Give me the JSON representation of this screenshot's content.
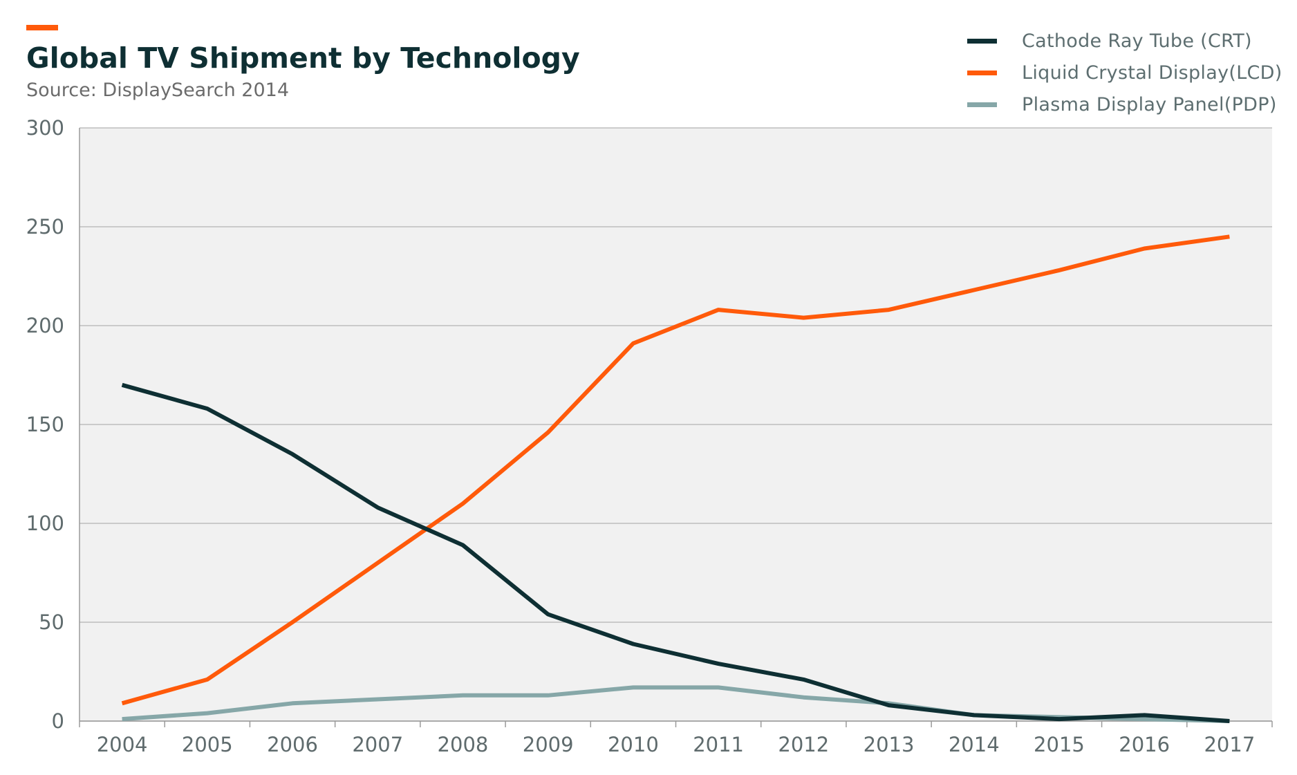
{
  "header": {
    "title": "Global TV Shipment by Technology",
    "subtitle": "Source: DisplaySearch 2014",
    "accent_color": "#ff5a0a"
  },
  "legend": {
    "placement": "top-right",
    "items": [
      {
        "label": "Cathode Ray Tube (CRT)",
        "color": "#0e2f33"
      },
      {
        "label": "Liquid Crystal Display(LCD)",
        "color": "#ff5a0a"
      },
      {
        "label": "Plasma Display Panel(PDP)",
        "color": "#86a7a8"
      }
    ]
  },
  "chart_data": {
    "type": "line",
    "x": [
      "2004",
      "2005",
      "2006",
      "2007",
      "2008",
      "2009",
      "2010",
      "2011",
      "2012",
      "2013",
      "2014",
      "2015",
      "2016",
      "2017"
    ],
    "yticks": [
      "0",
      "50",
      "100",
      "150",
      "200",
      "250",
      "300"
    ],
    "ylim": [
      0,
      300
    ],
    "grid": true,
    "plot_background": "#f1f1f1",
    "series": [
      {
        "name": "Cathode Ray Tube (CRT)",
        "color": "#0e2f33",
        "values": [
          170,
          158,
          135,
          108,
          89,
          54,
          39,
          29,
          21,
          8,
          3,
          1,
          3,
          0
        ]
      },
      {
        "name": "Liquid Crystal Display(LCD)",
        "color": "#ff5a0a",
        "values": [
          9,
          21,
          50,
          80,
          110,
          146,
          191,
          208,
          204,
          208,
          218,
          228,
          239,
          245
        ]
      },
      {
        "name": "Plasma Display Panel(PDP)",
        "color": "#86a7a8",
        "values": [
          1,
          4,
          9,
          11,
          13,
          13,
          17,
          17,
          12,
          9,
          3,
          2,
          1,
          0
        ]
      }
    ]
  }
}
